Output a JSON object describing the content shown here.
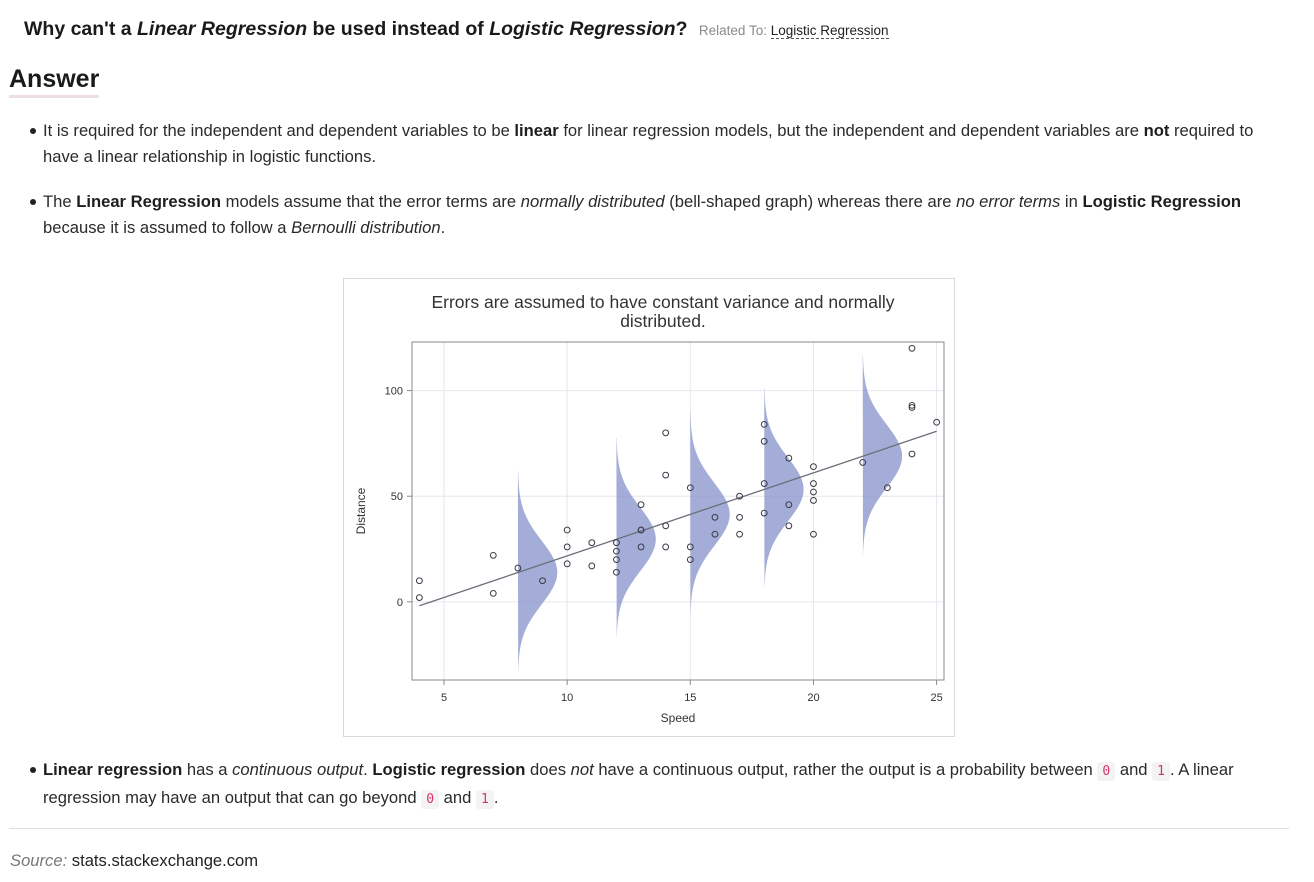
{
  "question": {
    "prefix": "Why can't a ",
    "term1": "Linear Regression",
    "middle": " be used instead of ",
    "term2": "Logistic Regression",
    "suffix": "?",
    "related_prefix": "Related To: ",
    "related_link": "Logistic Regression"
  },
  "answer_heading": "Answer",
  "bullets": {
    "b1": {
      "t1": "It is required for the independent and dependent variables to be ",
      "t2": "linear",
      "t3": " for linear regression models, but the independent and dependent variables are ",
      "t4": "not",
      "t5": " required to have a linear relationship in logistic functions."
    },
    "b2": {
      "t1": "The ",
      "t2": "Linear Regression",
      "t3": " models assume that the error terms are ",
      "t4": "normally distributed",
      "t5": " (bell-shaped graph) whereas there are ",
      "t6": "no error terms",
      "t7": " in ",
      "t8": "Logistic Regression",
      "t9": " because it is assumed to follow a ",
      "t10": "Bernoulli distribution",
      "t11": "."
    },
    "b3": {
      "t1": "Linear regression",
      "t2": " has a ",
      "t3": "continuous output",
      "t4": ". ",
      "t5": "Logistic regression",
      "t6": " does ",
      "t7": "not",
      "t8": " have a continuous output, rather the output is a probability between ",
      "c1": "0",
      "t9": " and ",
      "c2": "1",
      "t10": ". A linear regression may have an output that can go beyond ",
      "c3": "0",
      "t11": " and ",
      "c4": "1",
      "t12": "."
    }
  },
  "source": {
    "label": "Source:",
    "text": " stats.stackexchange.com"
  },
  "chart_data": {
    "type": "scatter",
    "title_line1": "Errors are assumed to have constant variance and normally",
    "title_line2": "distributed.",
    "xlabel": "Speed",
    "ylabel": "Distance",
    "xlim": [
      3.7,
      25.3
    ],
    "ylim": [
      -37,
      123
    ],
    "xticks": [
      5,
      10,
      15,
      20,
      25
    ],
    "yticks": [
      0,
      50,
      100
    ],
    "grid": true,
    "points": [
      [
        4,
        2
      ],
      [
        4,
        10
      ],
      [
        7,
        4
      ],
      [
        7,
        22
      ],
      [
        8,
        16
      ],
      [
        9,
        10
      ],
      [
        10,
        18
      ],
      [
        10,
        26
      ],
      [
        10,
        34
      ],
      [
        11,
        17
      ],
      [
        11,
        28
      ],
      [
        12,
        14
      ],
      [
        12,
        20
      ],
      [
        12,
        24
      ],
      [
        12,
        28
      ],
      [
        13,
        26
      ],
      [
        13,
        34
      ],
      [
        13,
        34
      ],
      [
        13,
        46
      ],
      [
        14,
        26
      ],
      [
        14,
        36
      ],
      [
        14,
        60
      ],
      [
        14,
        80
      ],
      [
        15,
        20
      ],
      [
        15,
        26
      ],
      [
        15,
        54
      ],
      [
        16,
        32
      ],
      [
        16,
        40
      ],
      [
        17,
        32
      ],
      [
        17,
        40
      ],
      [
        17,
        50
      ],
      [
        18,
        42
      ],
      [
        18,
        56
      ],
      [
        18,
        76
      ],
      [
        18,
        84
      ],
      [
        19,
        36
      ],
      [
        19,
        46
      ],
      [
        19,
        68
      ],
      [
        20,
        32
      ],
      [
        20,
        48
      ],
      [
        20,
        52
      ],
      [
        20,
        56
      ],
      [
        20,
        64
      ],
      [
        22,
        66
      ],
      [
        23,
        54
      ],
      [
        24,
        70
      ],
      [
        24,
        92
      ],
      [
        24,
        93
      ],
      [
        24,
        120
      ],
      [
        25,
        85
      ]
    ],
    "fit_line": {
      "x": [
        4,
        25
      ],
      "y": [
        -1.85,
        80.73
      ]
    },
    "error_curves": {
      "x_centers": [
        8,
        12,
        15,
        18,
        22
      ],
      "sd": 15,
      "max_width": 1.6,
      "color": "#8a96cc"
    },
    "colors": {
      "points": "#3a3a46",
      "fit_line": "#6a6f7a",
      "grid": "#e6e6ee",
      "frame": "#8a8a8a"
    }
  }
}
